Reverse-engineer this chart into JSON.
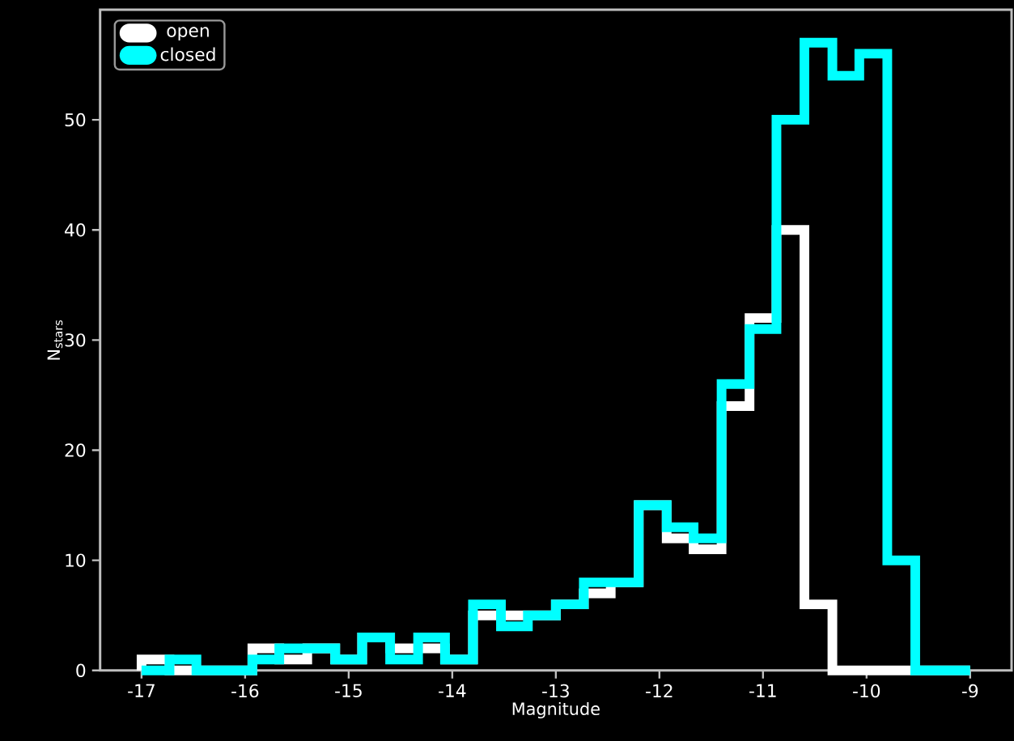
{
  "chart_data": {
    "type": "histogram",
    "xlabel": "Magnitude",
    "ylabel": "N$_{stars}$",
    "bins": [
      -17,
      -16.73,
      -16.47,
      -16.2,
      -15.93,
      -15.67,
      -15.4,
      -15.13,
      -14.87,
      -14.6,
      -14.33,
      -14.07,
      -13.8,
      -13.53,
      -13.27,
      -13,
      -12.73,
      -12.47,
      -12.2,
      -11.93,
      -11.67,
      -11.4,
      -11.13,
      -10.87,
      -10.6,
      -10.33,
      -10.07,
      -9.8,
      -9.53,
      -9.27,
      -9
    ],
    "series": [
      {
        "name": "open",
        "color": "#ffffff",
        "values": [
          1,
          0,
          0,
          0,
          2,
          1,
          2,
          1,
          3,
          2,
          2,
          1,
          5,
          5,
          5,
          6,
          7,
          8,
          15,
          12,
          11,
          24,
          32,
          40,
          6,
          0,
          0,
          0,
          0,
          0
        ]
      },
      {
        "name": "closed",
        "color": "#00ffff",
        "values": [
          0,
          1,
          0,
          0,
          1,
          2,
          2,
          1,
          3,
          1,
          3,
          1,
          6,
          4,
          5,
          6,
          8,
          8,
          15,
          13,
          12,
          26,
          31,
          50,
          57,
          54,
          56,
          10,
          0,
          0
        ]
      }
    ],
    "xlim": [
      -17.4,
      -8.6
    ],
    "ylim": [
      0,
      60
    ],
    "xticks": [
      -17,
      -16,
      -15,
      -14,
      -13,
      -12,
      -11,
      -10,
      -9
    ],
    "yticks": [
      0,
      10,
      20,
      30,
      40,
      50
    ],
    "legend": "top left"
  }
}
